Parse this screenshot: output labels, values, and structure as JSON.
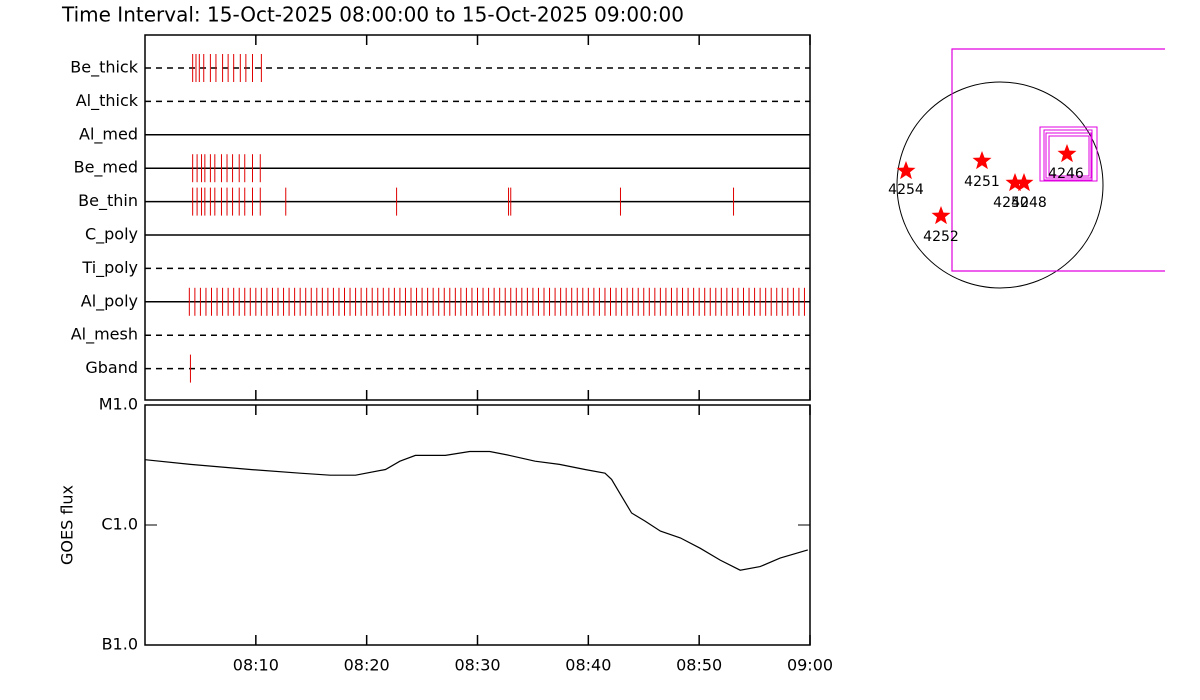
{
  "title": "Time Interval: 15-Oct-2025 08:00:00 to 15-Oct-2025 09:00:00",
  "chart_data": [
    {
      "type": "timeline",
      "xlim": [
        0,
        60
      ],
      "color": "#e00000",
      "series": [
        {
          "name": "Be_thick",
          "line_style": "dashed",
          "x": [
            4.3,
            4.6,
            4.9,
            5.3,
            5.9,
            6.4,
            7.0,
            7.5,
            8.0,
            8.6,
            9.1,
            9.7,
            10.5
          ]
        },
        {
          "name": "Al_thick",
          "line_style": "dashed",
          "x": []
        },
        {
          "name": "Al_med",
          "line_style": "solid",
          "x": []
        },
        {
          "name": "Be_med",
          "line_style": "solid",
          "x": [
            4.3,
            4.7,
            5.1,
            5.4,
            5.9,
            6.3,
            6.9,
            7.4,
            7.9,
            8.5,
            9.0,
            9.7,
            10.4
          ]
        },
        {
          "name": "Be_thin",
          "line_style": "solid",
          "x": [
            4.3,
            4.7,
            5.1,
            5.4,
            5.9,
            6.3,
            6.9,
            7.4,
            7.9,
            8.5,
            9.0,
            9.7,
            10.4,
            12.7,
            22.7,
            32.8,
            33.0,
            42.9,
            53.1
          ]
        },
        {
          "name": "C_poly",
          "line_style": "solid",
          "x": []
        },
        {
          "name": "Ti_poly",
          "line_style": "dashed",
          "x": []
        },
        {
          "name": "Al_poly",
          "line_style": "solid",
          "x": [
            4,
            4.5,
            5,
            5.5,
            6,
            6.5,
            7,
            7.5,
            8,
            8.5,
            9,
            9.5,
            10,
            10.5,
            11,
            11.5,
            12,
            12.5,
            13,
            13.5,
            14,
            14.5,
            15,
            15.5,
            16,
            16.5,
            17,
            17.5,
            18,
            18.5,
            19,
            19.5,
            20,
            20.5,
            21,
            21.5,
            22,
            22.5,
            23,
            23.5,
            24,
            24.5,
            25,
            25.5,
            26,
            26.5,
            27,
            27.5,
            28,
            28.5,
            29,
            29.5,
            30,
            30.5,
            31,
            31.5,
            32,
            32.5,
            33,
            33.5,
            34,
            34.5,
            35,
            35.5,
            36,
            36.5,
            37,
            37.5,
            38,
            38.5,
            39,
            39.5,
            40,
            40.5,
            41,
            41.5,
            42,
            42.5,
            43,
            43.5,
            44,
            44.5,
            45,
            45.5,
            46,
            46.5,
            47,
            47.5,
            48,
            48.5,
            49,
            49.5,
            50,
            50.5,
            51,
            51.5,
            52,
            52.5,
            53,
            53.5,
            54,
            54.5,
            55,
            55.5,
            56,
            56.5,
            57,
            57.5,
            58,
            58.5,
            59,
            59.5
          ]
        },
        {
          "name": "Al_mesh",
          "line_style": "dashed",
          "x": []
        },
        {
          "name": "Gband",
          "line_style": "dashed",
          "x": [
            4.1
          ]
        }
      ]
    },
    {
      "type": "line",
      "ylabel": "GOES flux",
      "log_scale": true,
      "color": "#000000",
      "xlim": [
        0,
        60
      ],
      "xticks": [
        {
          "value": 10,
          "label": "08:10"
        },
        {
          "value": 20,
          "label": "08:20"
        },
        {
          "value": 30,
          "label": "08:30"
        },
        {
          "value": 40,
          "label": "08:40"
        },
        {
          "value": 50,
          "label": "08:50"
        },
        {
          "value": 60,
          "label": "09:00"
        }
      ],
      "ylim": [
        1e-07,
        1e-05
      ],
      "yticks": [
        {
          "value": 1e-07,
          "label": "B1.0"
        },
        {
          "value": 1e-06,
          "label": "C1.0"
        },
        {
          "value": 1e-05,
          "label": "M1.0"
        }
      ],
      "x": [
        0,
        4.1,
        9.5,
        14.0,
        16.7,
        19.0,
        21.7,
        23.0,
        24.4,
        27.1,
        29.3,
        31.1,
        32.9,
        35.2,
        37.4,
        39.7,
        41.5,
        42.1,
        42.9,
        43.9,
        45.1,
        46.5,
        48.3,
        50.1,
        51.9,
        53.7,
        55.5,
        57.3,
        59.8
      ],
      "values": [
        3.5e-06,
        3.2e-06,
        2.9e-06,
        2.7e-06,
        2.6e-06,
        2.6e-06,
        2.9e-06,
        3.4e-06,
        3.8e-06,
        3.8e-06,
        4.1e-06,
        4.1e-06,
        3.8e-06,
        3.4e-06,
        3.2e-06,
        2.9e-06,
        2.7e-06,
        2.4e-06,
        1.8e-06,
        1.26e-06,
        1.08e-06,
        8.9e-07,
        7.8e-07,
        6.4e-07,
        5.1e-07,
        4.2e-07,
        4.5e-07,
        5.3e-07,
        6.2e-07
      ]
    }
  ],
  "map": {
    "regions": [
      {
        "label": "4254"
      },
      {
        "label": "4252"
      },
      {
        "label": "4251"
      },
      {
        "label": "4250"
      },
      {
        "label": "4248"
      },
      {
        "label": "4246"
      }
    ]
  }
}
